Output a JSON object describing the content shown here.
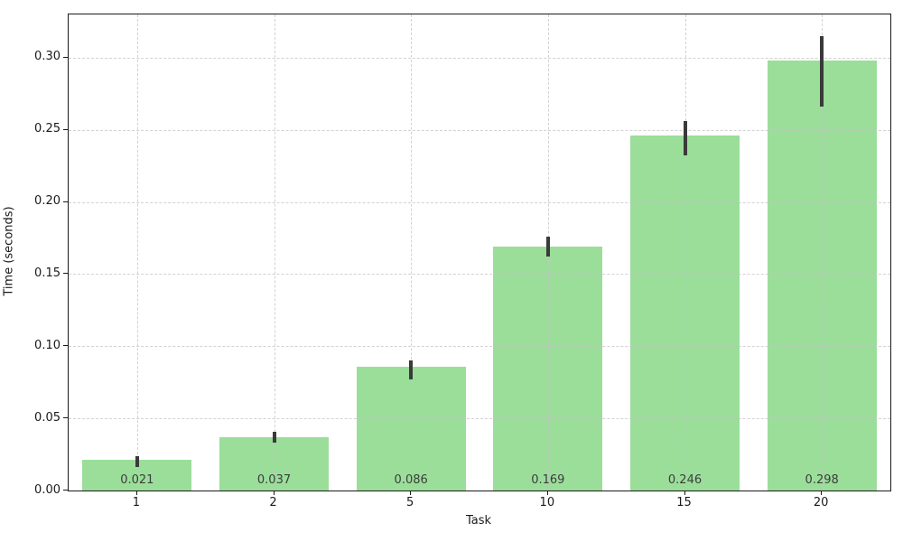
{
  "figure": {
    "background_color": "#ffffff",
    "bar_color": "#9ade9a",
    "error_bar_color": "#3a3a3a",
    "grid_color": "#c4c4c4",
    "axis_color": "#1a1a1a",
    "tick_text_color": "#1a1a1a",
    "value_label_color": "#3d3d3d"
  },
  "chart_data": {
    "type": "bar",
    "title": "",
    "xlabel": "Task",
    "ylabel": "Time (seconds)",
    "categories": [
      "1",
      "2",
      "5",
      "10",
      "15",
      "20"
    ],
    "values": [
      0.021,
      0.037,
      0.086,
      0.169,
      0.246,
      0.298
    ],
    "value_labels": [
      "0.021",
      "0.037",
      "0.086",
      "0.169",
      "0.246",
      "0.298"
    ],
    "error_ranges": [
      [
        0.016,
        0.024
      ],
      [
        0.033,
        0.041
      ],
      [
        0.077,
        0.09
      ],
      [
        0.162,
        0.176
      ],
      [
        0.232,
        0.256
      ],
      [
        0.266,
        0.315
      ]
    ],
    "y_ticks": [
      "0.00",
      "0.05",
      "0.10",
      "0.15",
      "0.20",
      "0.25",
      "0.30"
    ],
    "ylim": [
      0,
      0.33
    ],
    "grid": "dashed, both axes, drawn over bars",
    "legend": "none",
    "bar_width_fraction": 0.8
  }
}
